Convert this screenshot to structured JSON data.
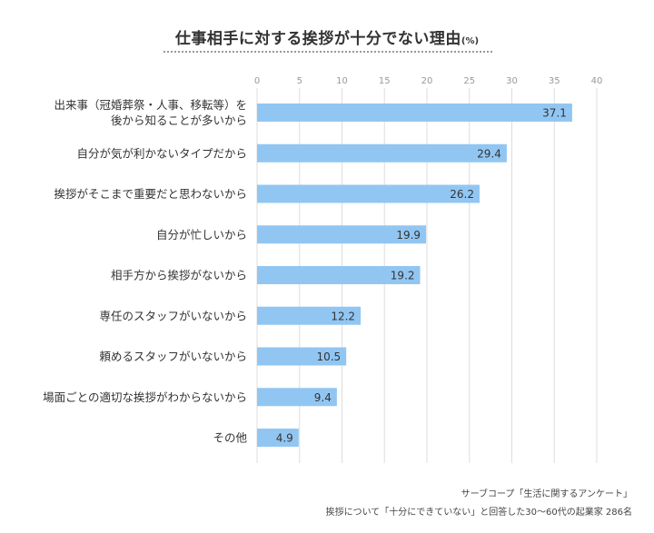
{
  "title": "仕事相手に対する挨拶が十分でない理由",
  "title_unit": "(%)",
  "source_line1": "サーブコープ「生活に関するアンケート」",
  "source_line2": "挨拶について「十分にできていない」と回答した30〜60代の起業家 286名",
  "colors": {
    "bar": "#92c6f2",
    "grid": "#dddddd",
    "tick": "#999999",
    "label": "#333333"
  },
  "chart_data": {
    "type": "bar",
    "orientation": "horizontal",
    "title": "仕事相手に対する挨拶が十分でない理由",
    "unit": "(%)",
    "xlim": [
      0,
      40
    ],
    "xticks": [
      0,
      5,
      10,
      15,
      20,
      25,
      30,
      35,
      40
    ],
    "grid": true,
    "categories": [
      [
        "出来事（冠婚葬祭・人事、移転等）を",
        "後から知ることが多いから"
      ],
      [
        "自分が気が利かないタイプだから"
      ],
      [
        "挨拶がそこまで重要だと思わないから"
      ],
      [
        "自分が忙しいから"
      ],
      [
        "相手方から挨拶がないから"
      ],
      [
        "専任のスタッフがいないから"
      ],
      [
        "頼めるスタッフがいないから"
      ],
      [
        "場面ごとの適切な挨拶がわからないから"
      ],
      [
        "その他"
      ]
    ],
    "values": [
      37.1,
      29.4,
      26.2,
      19.9,
      19.2,
      12.2,
      10.5,
      9.4,
      4.9
    ],
    "value_labels": [
      "37.1",
      "29.4",
      "26.2",
      "19.9",
      "19.2",
      "12.2",
      "10.5",
      "9.4",
      "4.9"
    ]
  }
}
